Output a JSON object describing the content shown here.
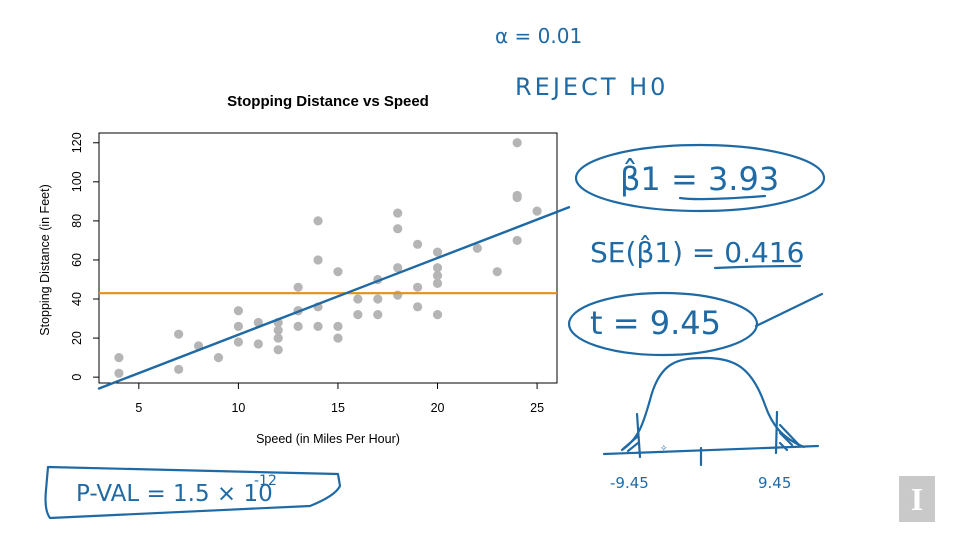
{
  "chart_data": {
    "type": "scatter",
    "title": "Stopping Distance vs Speed",
    "xlabel": "Speed (in Miles Per Hour)",
    "ylabel": "Stopping Distance (in Feet)",
    "xlim": [
      3,
      26
    ],
    "ylim": [
      -3,
      125
    ],
    "x_ticks": [
      5,
      10,
      15,
      20,
      25
    ],
    "y_ticks": [
      0,
      20,
      40,
      60,
      80,
      100,
      120
    ],
    "grid": false,
    "points": {
      "x": [
        4,
        4,
        7,
        7,
        8,
        9,
        10,
        10,
        10,
        11,
        11,
        12,
        12,
        12,
        12,
        13,
        13,
        13,
        13,
        14,
        14,
        14,
        14,
        15,
        15,
        15,
        16,
        16,
        17,
        17,
        17,
        18,
        18,
        18,
        18,
        19,
        19,
        19,
        20,
        20,
        20,
        20,
        20,
        22,
        23,
        24,
        24,
        24,
        24,
        25
      ],
      "y": [
        2,
        10,
        4,
        22,
        16,
        10,
        18,
        26,
        34,
        17,
        28,
        14,
        20,
        24,
        28,
        26,
        34,
        34,
        46,
        26,
        36,
        60,
        80,
        20,
        26,
        54,
        32,
        40,
        32,
        40,
        50,
        42,
        56,
        76,
        84,
        36,
        46,
        68,
        32,
        48,
        52,
        56,
        64,
        66,
        54,
        70,
        92,
        93,
        120,
        85
      ]
    },
    "point_color": "#b5b5b5",
    "mean_line": {
      "y": 42.98,
      "color": "#e8900c"
    },
    "regression_line": {
      "intercept": -17.58,
      "slope": 3.93,
      "color": "#1f6aa5"
    }
  },
  "annotations": {
    "alpha": "α = 0.01",
    "decision": "REJECT H0",
    "beta_hat": "β̂1 = 3.93",
    "se": "SE(β̂1) = 0.416",
    "t_stat": "t = 9.45",
    "p_value": "P-VAL = 1.5 × 10",
    "p_value_exponent": "-12",
    "left_crit": "-9.45",
    "right_crit": "9.45",
    "ink_color": "#1f6aa5"
  },
  "logo": {
    "letter": "I"
  }
}
